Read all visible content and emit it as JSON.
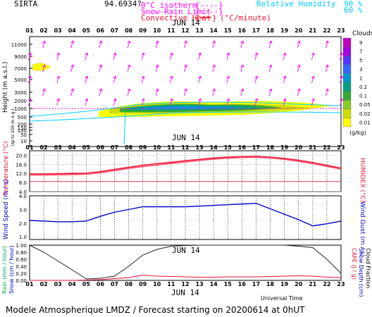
{
  "header": {
    "site": "SIRTA",
    "coords": "94.6934?",
    "legend_isotherm_label": "0°C isotherm",
    "legend_isotherm_dashes": "{----}",
    "legend_snow_label": "Snow-Rain Limit",
    "legend_snow_dashes": "{----}",
    "legend_conv_label": "Convective Heat",
    "legend_conv_unit": "(°C/minute)",
    "legend_rh_label": "Relative Humidity",
    "legend_rh_90": "90 %",
    "legend_rh_60": "60 %"
  },
  "colors": {
    "magenta": "#ff00ff",
    "cyan": "#00ccff",
    "red": "#ee1133",
    "blue": "#0000cc",
    "black": "#000000"
  },
  "date_label": "JUN 14",
  "hours": [
    "01",
    "02",
    "03",
    "04",
    "05",
    "06",
    "07",
    "08",
    "09",
    "10",
    "11",
    "12",
    "13",
    "14",
    "15",
    "16",
    "17",
    "18",
    "19",
    "20",
    "21",
    "22",
    "23"
  ],
  "clouds_legend": {
    "title": "Clouds",
    "unit": "(g/kg)",
    "labels": [
      "9",
      "7",
      "5",
      "3",
      "1",
      "0.2",
      "0.1",
      "0.05",
      "0.02",
      "0.01"
    ],
    "colors": [
      "#c000c0",
      "#a000e0",
      "#5533ff",
      "#3366ff",
      "#0099cc",
      "#00a080",
      "#33aa33",
      "#88cc22",
      "#ccdd00",
      "#ffff00"
    ]
  },
  "chart_data": [
    {
      "type": "heatmap",
      "ylabel": "Height (m a.s.l.)",
      "ylabel2": "Up to 200 m a.g.l.",
      "y_ticks": [
        "11000",
        "9000",
        "7000",
        "5000",
        "3000",
        "2000",
        "1000",
        "500",
        "200",
        "150",
        "100",
        "50",
        "10"
      ],
      "note": "cloud water content by hour and height with wind arrows"
    },
    {
      "type": "line",
      "ylabel": "Temperature (°C)",
      "ylabel2": "HUMIDEX (°C)",
      "y_ticks": [
        "20.0",
        "16.0",
        "12.0",
        "8.0",
        "4.0"
      ],
      "ylim": [
        4,
        22
      ],
      "x": [
        "01",
        "02",
        "03",
        "04",
        "05",
        "06",
        "07",
        "08",
        "09",
        "10",
        "11",
        "12",
        "13",
        "14",
        "15",
        "16",
        "17",
        "18",
        "19",
        "20",
        "21",
        "22",
        "23"
      ],
      "series": [
        {
          "name": "Temperature",
          "values": [
            11.8,
            11.8,
            11.9,
            12.0,
            12.1,
            12.8,
            13.8,
            14.7,
            15.6,
            16.3,
            16.9,
            17.6,
            18.2,
            18.8,
            19.2,
            19.4,
            19.5,
            19.2,
            18.6,
            17.8,
            16.8,
            15.6,
            14.3
          ]
        },
        {
          "name": "HUMIDEX",
          "values": [
            11.3,
            11.3,
            11.4,
            11.5,
            11.6,
            12.3,
            13.2,
            14.2,
            15.0,
            15.7,
            16.4,
            17.0,
            17.7,
            18.3,
            18.7,
            19.0,
            19.1,
            18.8,
            18.2,
            17.3,
            16.3,
            15.1,
            13.9
          ]
        }
      ],
      "reference_line": 8.5
    },
    {
      "type": "line",
      "ylabel": "Wind Speed (m / s)",
      "ylabel2": "Wind Gust (m / s)",
      "y_ticks": [
        "4.0",
        "3.0",
        "2.0",
        "1.0"
      ],
      "ylim": [
        0.8,
        4.0
      ],
      "x": [
        "01",
        "02",
        "03",
        "04",
        "05",
        "06",
        "07",
        "08",
        "09",
        "10",
        "11",
        "12",
        "13",
        "14",
        "15",
        "16",
        "17",
        "18",
        "19",
        "20",
        "21",
        "22",
        "23"
      ],
      "series": [
        {
          "name": "Wind Speed",
          "values": [
            2.2,
            2.15,
            2.1,
            2.1,
            2.15,
            2.5,
            2.8,
            3.0,
            3.2,
            3.2,
            3.2,
            3.2,
            3.25,
            3.3,
            3.35,
            3.4,
            3.45,
            3.05,
            2.65,
            2.25,
            1.8,
            1.95,
            2.15
          ]
        }
      ]
    },
    {
      "type": "line",
      "ylabel": "Rain (mm / hour)",
      "ylabel2": "Snow (cm / hour)",
      "ylabel3": "CAPE (J / g)",
      "ylabel4": "Snow Depth (cm)",
      "ylabel5": "Cloud Fraction",
      "y_ticks": [
        "1.00",
        "0.80",
        "0.60",
        "0.40",
        "0.20",
        "0.00"
      ],
      "ylim": [
        0,
        1
      ],
      "x": [
        "01",
        "02",
        "03",
        "04",
        "05",
        "06",
        "07",
        "08",
        "09",
        "10",
        "11",
        "12",
        "13",
        "14",
        "15",
        "16",
        "17",
        "18",
        "19",
        "20",
        "21",
        "22",
        "23"
      ],
      "series": [
        {
          "name": "Cloud Fraction",
          "values": [
            1.0,
            0.8,
            0.55,
            0.3,
            0.04,
            0.06,
            0.12,
            0.4,
            0.72,
            0.88,
            0.97,
            0.99,
            1.0,
            1.0,
            1.0,
            1.0,
            1.0,
            1.0,
            1.0,
            0.97,
            0.93,
            0.6,
            0.2
          ]
        },
        {
          "name": "CAPE",
          "values": [
            0.0,
            0.0,
            0.0,
            0.0,
            0.01,
            0.02,
            0.05,
            0.08,
            0.15,
            0.12,
            0.11,
            0.1,
            0.09,
            0.09,
            0.1,
            0.1,
            0.1,
            0.11,
            0.12,
            0.13,
            0.12,
            0.09,
            0.08
          ]
        }
      ]
    }
  ],
  "footer": {
    "universal_time": "Universal Time",
    "title": "Modele Atmospherique LMDZ / Forecast starting on 20200614 at 0hUT"
  }
}
